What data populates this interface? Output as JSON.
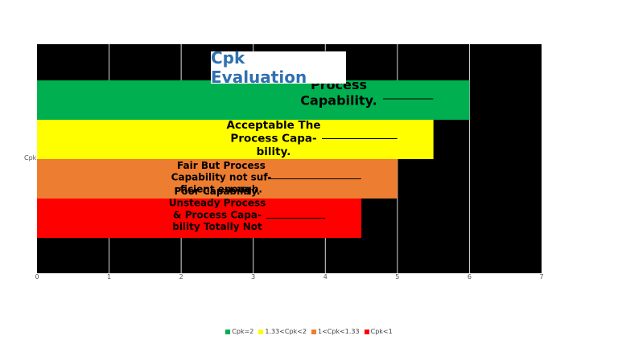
{
  "chart_data": {
    "type": "bar",
    "orientation": "horizontal",
    "title": "Cpk Evaluation",
    "category_label": "Cpk",
    "xlim": [
      0,
      7
    ],
    "xticks": [
      "0",
      "1",
      "2",
      "3",
      "4",
      "5",
      "6",
      "7"
    ],
    "grid": true,
    "legend_position": "bottom",
    "series": [
      {
        "name": "Cpk=2",
        "value": 6,
        "color": "#00b050",
        "label": "Process Capability Accepted The Process Capability."
      },
      {
        "name": "1.33<Cpk<2",
        "value": 5.5,
        "color": "#ffff00",
        "label": "Acceptable The Process Capability."
      },
      {
        "name": "1<Cpk<1.33",
        "value": 5,
        "color": "#ed7d31",
        "label": "Fair But Process Capability not sufficient enough."
      },
      {
        "name": "Cpk<1",
        "value": 4.5,
        "color": "#ff0000",
        "label": "Poor Capability. Unsteady Process & Process Capability Totally Not"
      }
    ]
  }
}
